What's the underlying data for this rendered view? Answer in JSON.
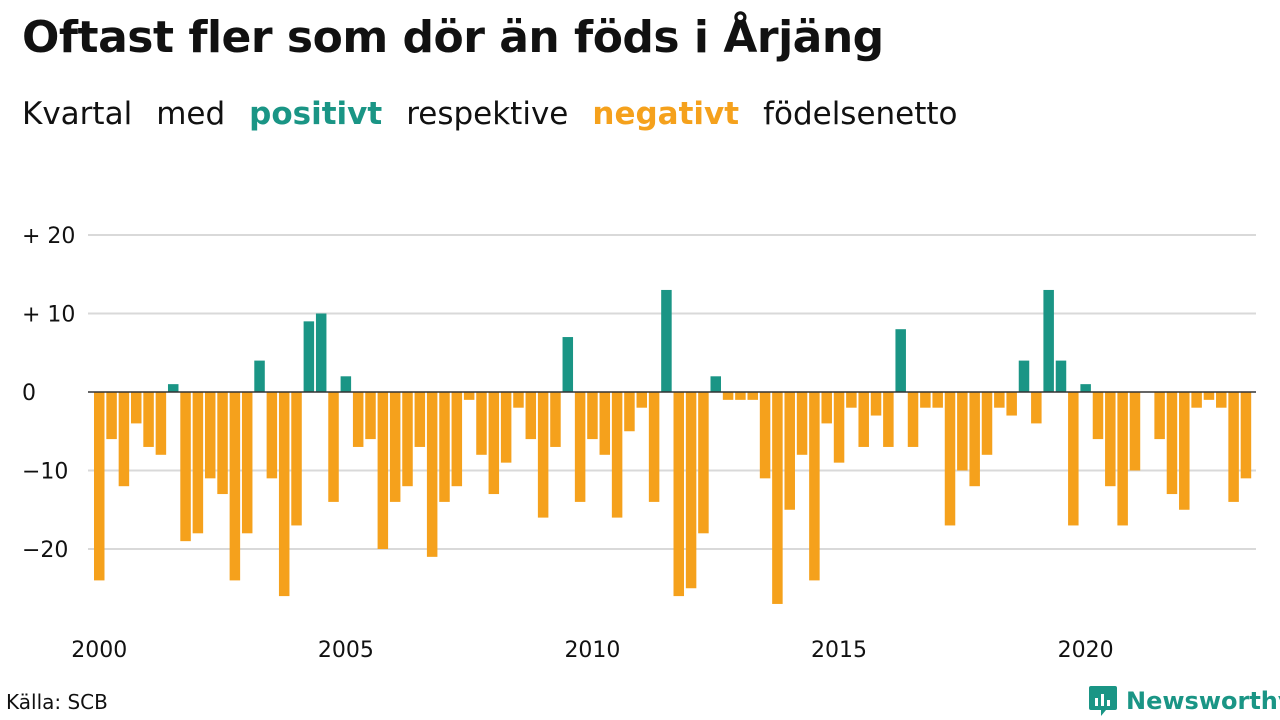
{
  "title": "Oftast fler som dör än föds i Årjäng",
  "subtitle": {
    "w1": "Kvartal",
    "w2": "med",
    "positive": "positivt",
    "w3": "respektive",
    "negative": "negativt",
    "w4": "födelsenetto"
  },
  "source": "Källa: SCB",
  "brand": {
    "name": "Newsworthy",
    "icon": "newsworthy-logo-icon"
  },
  "colors": {
    "positive": "#1a9585",
    "negative": "#f5a11c",
    "grid": "#d9d9d9",
    "text": "#111111"
  },
  "chart_data": {
    "type": "bar",
    "x_start": "2000 Q1",
    "y_ticks": [
      20,
      10,
      0,
      -10,
      -20
    ],
    "y_tick_labels": [
      "+ 20",
      "+ 10",
      "0",
      "−10",
      "−20"
    ],
    "x_tick_years": [
      2000,
      2005,
      2010,
      2015,
      2020
    ],
    "ylim": [
      -30,
      20
    ],
    "grid": true,
    "values": [
      -24,
      -6,
      -12,
      -4,
      -7,
      -8,
      1,
      -19,
      -18,
      -11,
      -13,
      -24,
      -18,
      4,
      -11,
      -26,
      -17,
      9,
      10,
      -14,
      2,
      -7,
      -6,
      -20,
      -14,
      -12,
      -7,
      -21,
      -14,
      -12,
      -1,
      -8,
      -13,
      -9,
      -2,
      -6,
      -16,
      -7,
      7,
      -14,
      -6,
      -8,
      -16,
      -5,
      -2,
      -14,
      13,
      -26,
      -25,
      -18,
      2,
      -1,
      -1,
      -1,
      -11,
      -27,
      -15,
      -8,
      -24,
      -4,
      -9,
      -2,
      -7,
      -3,
      -7,
      8,
      -7,
      -2,
      -2,
      -17,
      -10,
      -12,
      -8,
      -2,
      -3,
      4,
      -4,
      13,
      4,
      -17,
      1,
      -6,
      -12,
      -17,
      -10,
      0,
      -6,
      -13,
      -15,
      -2,
      -1,
      -2,
      -14,
      -11
    ]
  }
}
